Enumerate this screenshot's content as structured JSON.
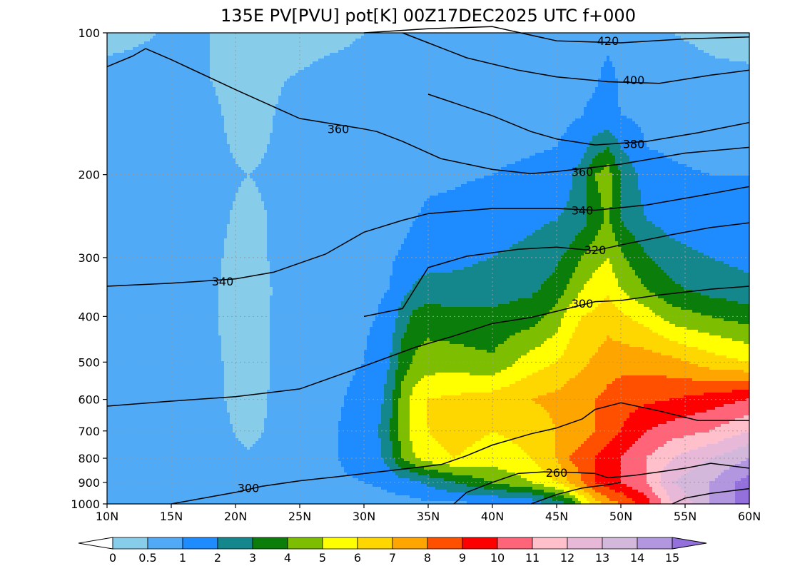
{
  "chart_data": {
    "type": "heatmap",
    "title": "135E PV[PVU] pot[K] 00Z17DEC2025 UTC f+000",
    "xlabel": "",
    "ylabel": "",
    "x_axis": {
      "ticks": [
        10,
        15,
        20,
        25,
        30,
        35,
        40,
        45,
        50,
        55,
        60
      ],
      "tick_labels": [
        "10N",
        "15N",
        "20N",
        "25N",
        "30N",
        "35N",
        "40N",
        "45N",
        "50N",
        "55N",
        "60N"
      ],
      "range": [
        10,
        60
      ]
    },
    "y_axis": {
      "scale": "log",
      "inverted": true,
      "ticks": [
        100,
        200,
        300,
        400,
        500,
        600,
        700,
        800,
        900,
        1000
      ],
      "tick_labels": [
        "100",
        "200",
        "300",
        "400",
        "500",
        "600",
        "700",
        "800",
        "900",
        "1000"
      ],
      "range": [
        1000,
        100
      ]
    },
    "grid": true,
    "colorbar": {
      "placement": "bottom",
      "levels": [
        0,
        0.5,
        1,
        2,
        3,
        4,
        5,
        6,
        7,
        8,
        9,
        10,
        11,
        12,
        13,
        14,
        15
      ],
      "tick_labels": [
        "0",
        "0.5",
        "1",
        "2",
        "3",
        "4",
        "5",
        "6",
        "7",
        "8",
        "9",
        "10",
        "11",
        "12",
        "13",
        "14",
        "15"
      ],
      "colors": [
        "#87cdea",
        "#50aaf5",
        "#1e8cff",
        "#14878c",
        "#0a7d0a",
        "#7dbe00",
        "#ffff00",
        "#ffd700",
        "#ffa500",
        "#ff5000",
        "#ff0000",
        "#ff6478",
        "#ffc0cb",
        "#e8b8d8",
        "#d4b8dc",
        "#b296e0"
      ],
      "under_color": "#ffffff",
      "over_color": "#9370db"
    },
    "pv_field": {
      "description_columns": "latitude",
      "lat": [
        10,
        14,
        18,
        21,
        24,
        27,
        30,
        31,
        32,
        33,
        34,
        35,
        37,
        40,
        43,
        45,
        46,
        47,
        48,
        49,
        50,
        52,
        54,
        57,
        60
      ],
      "lev": [
        1000,
        900,
        800,
        700,
        600,
        500,
        400,
        350,
        300,
        250,
        200,
        175,
        150,
        125,
        100
      ],
      "values": [
        [
          0.5,
          0.6,
          0.6,
          0.5,
          0.5,
          0.5,
          0.6,
          0.6,
          0.6,
          0.6,
          0.7,
          0.8,
          0.8,
          0.9,
          1.2,
          2.5,
          3,
          5,
          6.5,
          7.5,
          8,
          9.5,
          12,
          14,
          15.5
        ],
        [
          0.6,
          0.7,
          0.8,
          0.8,
          0.8,
          0.9,
          1.0,
          1.1,
          1.3,
          1.6,
          1.8,
          2.2,
          3,
          4,
          5,
          6,
          7,
          8,
          9,
          9.5,
          10,
          11,
          13,
          14,
          15.5
        ],
        [
          0.7,
          0.8,
          0.8,
          0.6,
          0.7,
          0.9,
          1.2,
          1.6,
          2.5,
          4,
          5,
          5.5,
          6,
          5.5,
          6,
          7,
          8,
          8.5,
          9,
          9.5,
          10,
          11,
          12,
          13,
          14
        ],
        [
          0.8,
          0.9,
          0.8,
          0.3,
          0.8,
          0.9,
          1.2,
          1.8,
          3,
          4.5,
          5.5,
          6,
          6.5,
          6,
          6.3,
          7,
          7.3,
          7.6,
          8,
          8.5,
          9,
          10,
          10.5,
          11,
          12
        ],
        [
          0.8,
          0.9,
          0.7,
          0.2,
          0.8,
          0.9,
          1.1,
          1.5,
          2.5,
          4.5,
          5.5,
          6,
          6.2,
          6.5,
          7,
          7.3,
          7.5,
          7.8,
          8,
          8.3,
          8.6,
          8.8,
          9,
          9.5,
          10
        ],
        [
          0.8,
          0.9,
          0.7,
          0.1,
          0.8,
          0.9,
          1.0,
          1.3,
          2,
          3.5,
          4.2,
          4.5,
          4.5,
          4.2,
          5.5,
          6,
          6.5,
          6.8,
          7.2,
          7.5,
          7.6,
          7.6,
          7.3,
          6.5,
          6
        ],
        [
          0.7,
          0.9,
          0.6,
          0.1,
          0.8,
          0.9,
          0.9,
          1.0,
          1.3,
          2.5,
          3.3,
          3.5,
          3.3,
          3.2,
          3.5,
          4.5,
          5.5,
          6,
          6.2,
          6.6,
          6.2,
          5.5,
          4.5,
          4,
          3.5
        ],
        [
          0.7,
          0.8,
          0.6,
          0.2,
          0.7,
          0.8,
          0.8,
          0.9,
          1.0,
          1.6,
          2.2,
          2.4,
          2.4,
          2.6,
          2.8,
          3.4,
          4.2,
          5,
          5.5,
          5.8,
          5,
          4,
          3.2,
          2.6,
          2.3
        ],
        [
          0.7,
          0.8,
          0.6,
          0.3,
          0.7,
          0.8,
          0.8,
          0.9,
          0.9,
          1.1,
          1.4,
          1.6,
          1.7,
          2,
          2.3,
          2.8,
          3.3,
          4.1,
          4.6,
          5,
          4.2,
          3.1,
          2.4,
          2,
          1.7
        ],
        [
          0.7,
          0.8,
          0.6,
          0.4,
          0.6,
          0.7,
          0.7,
          0.8,
          0.8,
          0.8,
          1.0,
          1.1,
          1.2,
          1.5,
          1.8,
          2,
          2.2,
          2.6,
          3.5,
          4.2,
          3,
          2,
          1.6,
          1.3,
          1.2
        ],
        [
          0.7,
          0.7,
          0.6,
          0.5,
          0.6,
          0.7,
          0.7,
          0.7,
          0.7,
          0.8,
          0.8,
          0.9,
          0.9,
          1.0,
          1.2,
          1.4,
          1.8,
          2.5,
          4,
          4.5,
          3,
          1.4,
          1.1,
          1.0,
          1.0
        ],
        [
          0.6,
          0.7,
          0.6,
          0.4,
          0.6,
          0.6,
          0.6,
          0.6,
          0.7,
          0.7,
          0.7,
          0.7,
          0.8,
          0.8,
          0.9,
          1.0,
          1.2,
          1.6,
          2.5,
          3,
          2,
          1.0,
          0.9,
          0.8,
          0.8
        ],
        [
          0.6,
          0.6,
          0.6,
          0.3,
          0.6,
          0.6,
          0.6,
          0.6,
          0.6,
          0.6,
          0.6,
          0.7,
          0.7,
          0.7,
          0.7,
          0.8,
          0.9,
          1.0,
          1.2,
          1.2,
          1.0,
          0.8,
          0.8,
          0.7,
          0.7
        ],
        [
          0.6,
          0.6,
          0.5,
          0.3,
          0.5,
          0.6,
          0.6,
          0.6,
          0.6,
          0.6,
          0.6,
          0.6,
          0.6,
          0.7,
          0.7,
          0.7,
          0.8,
          0.8,
          0.9,
          1.2,
          0.9,
          0.8,
          0.7,
          0.6,
          0.6
        ],
        [
          0.4,
          0.5,
          0.5,
          0.4,
          0.3,
          0.4,
          0.5,
          0.5,
          0.5,
          0.5,
          0.5,
          0.5,
          0.5,
          0.6,
          0.6,
          0.6,
          0.6,
          0.7,
          0.8,
          0.8,
          0.8,
          0.6,
          0.5,
          0.4,
          0.3
        ]
      ]
    },
    "isentropes": [
      {
        "label": "420",
        "points": [
          [
            30,
            100
          ],
          [
            35,
            98
          ],
          [
            40,
            97
          ],
          [
            45,
            104
          ],
          [
            50,
            105
          ],
          [
            55,
            103
          ],
          [
            60,
            102
          ]
        ]
      },
      {
        "label": "400",
        "points": [
          [
            33,
            100
          ],
          [
            35,
            105
          ],
          [
            38,
            113
          ],
          [
            42,
            120
          ],
          [
            45,
            124
          ],
          [
            49,
            127
          ],
          [
            53,
            128
          ],
          [
            57,
            123
          ],
          [
            60,
            120
          ]
        ]
      },
      {
        "label": "360",
        "points": [
          [
            10,
            118
          ],
          [
            12,
            112
          ],
          [
            13,
            108
          ],
          [
            15,
            114
          ],
          [
            20,
            132
          ],
          [
            25,
            152
          ],
          [
            30,
            160
          ],
          [
            31,
            162
          ],
          [
            33,
            170
          ],
          [
            36,
            185
          ],
          [
            40,
            195
          ],
          [
            43,
            199
          ],
          [
            45,
            197
          ],
          [
            50,
            190
          ],
          [
            55,
            180
          ],
          [
            60,
            175
          ]
        ]
      },
      {
        "label": "380",
        "points": [
          [
            35,
            135
          ],
          [
            40,
            150
          ],
          [
            43,
            162
          ],
          [
            45,
            168
          ],
          [
            48,
            173
          ],
          [
            52,
            170
          ],
          [
            56,
            163
          ],
          [
            60,
            155
          ]
        ]
      },
      {
        "label": "340",
        "points": [
          [
            10,
            345
          ],
          [
            15,
            340
          ],
          [
            20,
            333
          ],
          [
            23,
            322
          ],
          [
            27,
            295
          ],
          [
            30,
            265
          ],
          [
            33,
            250
          ],
          [
            35,
            242
          ],
          [
            40,
            236
          ],
          [
            45,
            236
          ],
          [
            48,
            238
          ],
          [
            52,
            232
          ],
          [
            56,
            222
          ],
          [
            60,
            212
          ]
        ]
      },
      {
        "label": "320",
        "points": [
          [
            30,
            400
          ],
          [
            33,
            385
          ],
          [
            35,
            315
          ],
          [
            38,
            298
          ],
          [
            42,
            288
          ],
          [
            45,
            285
          ],
          [
            48,
            290
          ],
          [
            50,
            282
          ],
          [
            54,
            268
          ],
          [
            57,
            259
          ],
          [
            60,
            253
          ]
        ]
      },
      {
        "label": "300",
        "points": [
          [
            10,
            620
          ],
          [
            15,
            605
          ],
          [
            20,
            592
          ],
          [
            25,
            570
          ],
          [
            30,
            510
          ],
          [
            34,
            465
          ],
          [
            37,
            440
          ],
          [
            40,
            414
          ],
          [
            43,
            402
          ],
          [
            45,
            390
          ],
          [
            48,
            372
          ],
          [
            50,
            370
          ],
          [
            53,
            360
          ],
          [
            57,
            350
          ],
          [
            60,
            345
          ]
        ]
      },
      {
        "label": "300",
        "points": [
          [
            15,
            1000
          ],
          [
            20,
            945
          ],
          [
            22,
            918
          ],
          [
            25,
            893
          ],
          [
            28,
            875
          ],
          [
            32,
            850
          ],
          [
            36,
            825
          ],
          [
            38,
            790
          ],
          [
            40,
            750
          ],
          [
            43,
            710
          ],
          [
            45,
            690
          ],
          [
            47,
            660
          ],
          [
            48,
            630
          ],
          [
            50,
            610
          ],
          [
            53,
            635
          ],
          [
            56,
            665
          ],
          [
            60,
            665
          ]
        ]
      },
      {
        "label": "260",
        "points": [
          [
            37,
            1000
          ],
          [
            38,
            945
          ],
          [
            40,
            900
          ],
          [
            42,
            862
          ],
          [
            44,
            855
          ],
          [
            46,
            857
          ],
          [
            48,
            862
          ],
          [
            49,
            880
          ],
          [
            51,
            870
          ],
          [
            53,
            855
          ],
          [
            55,
            840
          ],
          [
            57,
            820
          ],
          [
            60,
            840
          ]
        ]
      },
      {
        "label": "",
        "points": [
          [
            54,
            1000
          ],
          [
            55,
            972
          ],
          [
            57,
            950
          ],
          [
            59,
            935
          ],
          [
            60,
            928
          ]
        ]
      },
      {
        "label": "",
        "points": [
          [
            43,
            1000
          ],
          [
            45,
            955
          ],
          [
            47,
            925
          ],
          [
            49,
            910
          ],
          [
            50,
            900
          ]
        ]
      }
    ],
    "contour_labels": [
      {
        "text": "420",
        "lat": 49,
        "lev": 104
      },
      {
        "text": "400",
        "lat": 51,
        "lev": 126
      },
      {
        "text": "360",
        "lat": 28,
        "lev": 160
      },
      {
        "text": "380",
        "lat": 51,
        "lev": 172
      },
      {
        "text": "360",
        "lat": 47,
        "lev": 197
      },
      {
        "text": "340",
        "lat": 47,
        "lev": 238
      },
      {
        "text": "320",
        "lat": 48,
        "lev": 289
      },
      {
        "text": "340",
        "lat": 19,
        "lev": 337
      },
      {
        "text": "300",
        "lat": 47,
        "lev": 375
      },
      {
        "text": "300",
        "lat": 21,
        "lev": 925
      },
      {
        "text": "260",
        "lat": 45,
        "lev": 857
      }
    ]
  }
}
